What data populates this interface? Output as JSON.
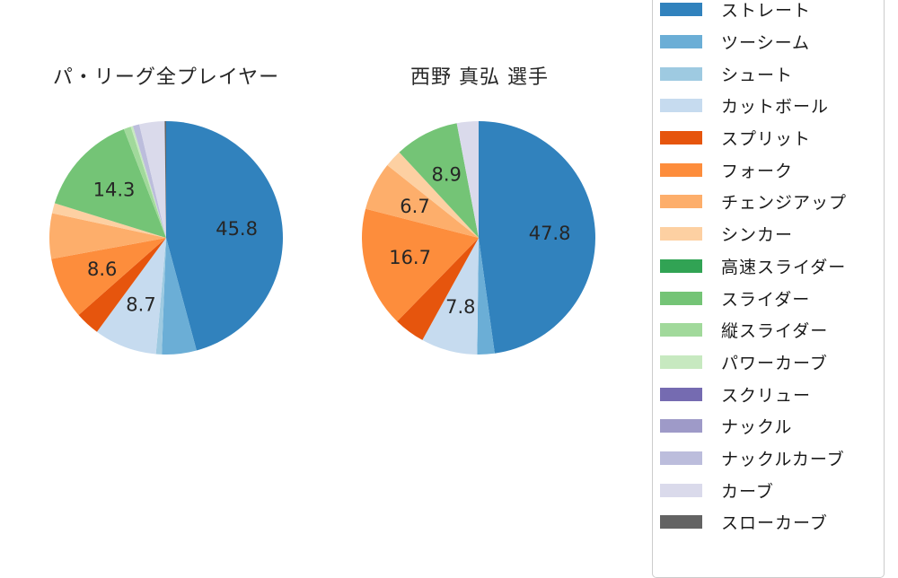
{
  "chart_data": [
    {
      "type": "pie",
      "title": "パ・リーグ全プレイヤー",
      "unit": "percent",
      "rotation": "clockwise-from-top",
      "slices": [
        {
          "name": "ストレート",
          "value": 45.8,
          "label": "45.8",
          "color": "#3182bd"
        },
        {
          "name": "ツーシーム",
          "value": 4.8,
          "label": null,
          "color": "#6baed6"
        },
        {
          "name": "シュート",
          "value": 0.8,
          "label": null,
          "color": "#9ecae1"
        },
        {
          "name": "カットボール",
          "value": 8.7,
          "label": "8.7",
          "color": "#c6dbef"
        },
        {
          "name": "スプリット",
          "value": 3.4,
          "label": null,
          "color": "#e6550d"
        },
        {
          "name": "フォーク",
          "value": 8.6,
          "label": "8.6",
          "color": "#fd8d3c"
        },
        {
          "name": "チェンジアップ",
          "value": 6.3,
          "label": null,
          "color": "#fdae6b"
        },
        {
          "name": "シンカー",
          "value": 1.4,
          "label": null,
          "color": "#fdd0a2"
        },
        {
          "name": "スライダー",
          "value": 14.3,
          "label": "14.3",
          "color": "#74c476"
        },
        {
          "name": "縦スライダー",
          "value": 1.0,
          "label": null,
          "color": "#a1d99b"
        },
        {
          "name": "パワーカーブ",
          "value": 0.3,
          "label": null,
          "color": "#c7e9c0"
        },
        {
          "name": "ナックルカーブ",
          "value": 0.9,
          "label": null,
          "color": "#bcbddc"
        },
        {
          "name": "カーブ",
          "value": 3.5,
          "label": null,
          "color": "#dadaeb"
        },
        {
          "name": "スローカーブ",
          "value": 0.2,
          "label": null,
          "color": "#636363"
        }
      ]
    },
    {
      "type": "pie",
      "title": "西野 真弘 選手",
      "unit": "percent",
      "rotation": "clockwise-from-top",
      "slices": [
        {
          "name": "ストレート",
          "value": 47.8,
          "label": "47.8",
          "color": "#3182bd"
        },
        {
          "name": "ツーシーム",
          "value": 2.4,
          "label": null,
          "color": "#6baed6"
        },
        {
          "name": "カットボール",
          "value": 7.8,
          "label": "7.8",
          "color": "#c6dbef"
        },
        {
          "name": "スプリット",
          "value": 4.3,
          "label": null,
          "color": "#e6550d"
        },
        {
          "name": "フォーク",
          "value": 16.7,
          "label": "16.7",
          "color": "#fd8d3c"
        },
        {
          "name": "チェンジアップ",
          "value": 6.7,
          "label": "6.7",
          "color": "#fdae6b"
        },
        {
          "name": "シンカー",
          "value": 2.4,
          "label": null,
          "color": "#fdd0a2"
        },
        {
          "name": "スライダー",
          "value": 8.9,
          "label": "8.9",
          "color": "#74c476"
        },
        {
          "name": "カーブ",
          "value": 3.0,
          "label": null,
          "color": "#dadaeb"
        }
      ]
    }
  ],
  "legend": {
    "position": "right",
    "items": [
      {
        "label": "ストレート",
        "color": "#3182bd"
      },
      {
        "label": "ツーシーム",
        "color": "#6baed6"
      },
      {
        "label": "シュート",
        "color": "#9ecae1"
      },
      {
        "label": "カットボール",
        "color": "#c6dbef"
      },
      {
        "label": "スプリット",
        "color": "#e6550d"
      },
      {
        "label": "フォーク",
        "color": "#fd8d3c"
      },
      {
        "label": "チェンジアップ",
        "color": "#fdae6b"
      },
      {
        "label": "シンカー",
        "color": "#fdd0a2"
      },
      {
        "label": "高速スライダー",
        "color": "#31a354"
      },
      {
        "label": "スライダー",
        "color": "#74c476"
      },
      {
        "label": "縦スライダー",
        "color": "#a1d99b"
      },
      {
        "label": "パワーカーブ",
        "color": "#c7e9c0"
      },
      {
        "label": "スクリュー",
        "color": "#756bb1"
      },
      {
        "label": "ナックル",
        "color": "#9e9ac8"
      },
      {
        "label": "ナックルカーブ",
        "color": "#bcbddc"
      },
      {
        "label": "カーブ",
        "color": "#dadaeb"
      },
      {
        "label": "スローカーブ",
        "color": "#636363"
      }
    ]
  }
}
